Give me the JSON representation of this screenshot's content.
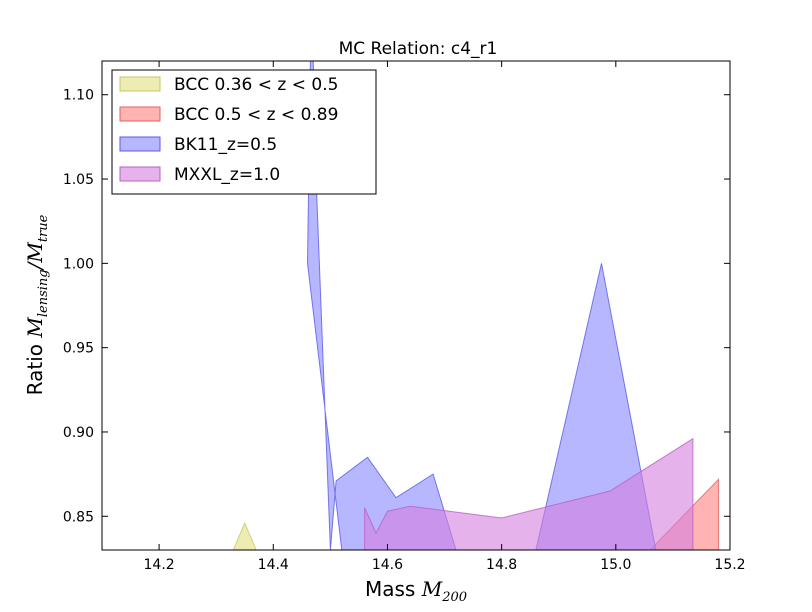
{
  "chart_data": {
    "type": "area",
    "title": "MC Relation: c4_r1",
    "xlabel": {
      "prefix": "Mass",
      "math": "M",
      "sub": "200"
    },
    "ylabel": {
      "prefix": "Ratio",
      "math1": "M",
      "sub1": "lensing",
      "slash": "/",
      "math2": "M",
      "sub2": "true"
    },
    "xlim": [
      14.1,
      15.2
    ],
    "ylim": [
      0.83,
      1.12
    ],
    "xticks": [
      14.2,
      14.4,
      14.6,
      14.8,
      15.0,
      15.2
    ],
    "xtick_labels": [
      "14.2",
      "14.4",
      "14.6",
      "14.8",
      "15.0",
      "15.2"
    ],
    "yticks": [
      0.85,
      0.9,
      0.95,
      1.0,
      1.05,
      1.1
    ],
    "ytick_labels": [
      "0.85",
      "0.90",
      "0.95",
      "1.00",
      "1.05",
      "1.10"
    ],
    "grid": false,
    "legend_position": "top-left",
    "series": [
      {
        "name": "BCC 0.36 < z < 0.5",
        "fill": "#e6e699",
        "edge": "#c8c860",
        "alpha": 0.75,
        "points": [
          [
            14.33,
            0.83
          ],
          [
            14.35,
            0.846
          ],
          [
            14.37,
            0.83
          ]
        ]
      },
      {
        "name": "BCC 0.5 < z < 0.89",
        "fill": "#ff8080",
        "edge": "#e06060",
        "alpha": 0.6,
        "points": [
          [
            15.06,
            0.83
          ],
          [
            15.18,
            0.872
          ],
          [
            15.18,
            0.83
          ]
        ]
      },
      {
        "name": "BK11_z=0.5",
        "fill": "#7b7bff",
        "edge": "#5a5ae6",
        "alpha": 0.55,
        "points": [
          [
            14.465,
            1.12
          ],
          [
            14.47,
            1.12
          ],
          [
            14.475,
            1.05
          ],
          [
            14.5,
            0.83
          ],
          [
            14.51,
            0.871
          ],
          [
            14.565,
            0.885
          ],
          [
            14.615,
            0.861
          ],
          [
            14.68,
            0.875
          ],
          [
            14.72,
            0.83
          ],
          [
            14.86,
            0.83
          ],
          [
            14.975,
            1.0
          ],
          [
            15.07,
            0.83
          ],
          [
            14.74,
            0.83
          ],
          [
            14.52,
            0.83
          ],
          [
            14.46,
            1.0
          ]
        ]
      },
      {
        "name": "MXXL_z=1.0",
        "fill": "#d67fdf",
        "edge": "#b860c0",
        "alpha": 0.6,
        "points": [
          [
            14.56,
            0.83
          ],
          [
            14.56,
            0.855
          ],
          [
            14.58,
            0.84
          ],
          [
            14.6,
            0.853
          ],
          [
            14.64,
            0.856
          ],
          [
            14.8,
            0.849
          ],
          [
            14.99,
            0.865
          ],
          [
            15.135,
            0.896
          ],
          [
            15.135,
            0.83
          ]
        ]
      }
    ]
  }
}
